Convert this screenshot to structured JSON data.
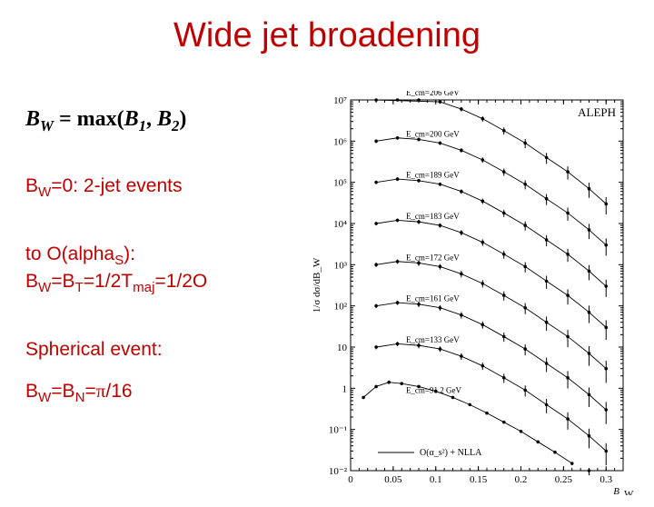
{
  "title": "Wide jet broadening",
  "formula_html": "B<sub>W</sub> = max(B<sub>1</sub>, B<sub>2</sub>)",
  "text": {
    "line1a": "B",
    "line1a_sub": "W",
    "line1b": "=0: 2-jet events",
    "line2a": "to O(alpha",
    "line2a_sub": "S",
    "line2b": "):",
    "line3a": "B",
    "line3a_sub1": "W",
    "line3b": "=B",
    "line3b_sub": "T",
    "line3c": "=1/2T",
    "line3c_sub": "maj",
    "line3d": "=1/2O",
    "line4": "Spherical event:",
    "line5a": "B",
    "line5a_sub1": "W",
    "line5b": "=B",
    "line5b_sub": "N",
    "line5c": "=",
    "line5_pi": "π",
    "line5d": "/16"
  },
  "chart": {
    "type": "scatter-log",
    "aleph_label": "ALEPH",
    "xlabel": "B_W",
    "ylabel": "1/σ dσ/dB_W",
    "xlim": [
      0,
      0.32
    ],
    "xticks": [
      0,
      0.05,
      0.1,
      0.15,
      0.2,
      0.25,
      0.3
    ],
    "xticklabels": [
      "0",
      "0.05",
      "0.1",
      "0.15",
      "0.2",
      "0.25",
      "0.3"
    ],
    "ylim_exp": [
      -2,
      7
    ],
    "yticks_exp": [
      -2,
      -1,
      0,
      1,
      2,
      3,
      4,
      5,
      6,
      7
    ],
    "yticklabels": [
      "10⁻²",
      "10⁻¹",
      "1",
      "10",
      "10²",
      "10³",
      "10⁴",
      "10⁵",
      "10⁶",
      "10⁷"
    ],
    "legend": "O(α_s²) + NLLA",
    "series": [
      {
        "label": "E_cm=206 GeV",
        "offset_exp": 6,
        "xs": [
          0.03,
          0.055,
          0.08,
          0.105,
          0.13,
          0.155,
          0.18,
          0.205,
          0.23,
          0.255,
          0.28,
          0.3
        ],
        "ys": [
          10,
          12,
          11,
          9,
          6,
          3.5,
          1.8,
          0.9,
          0.4,
          0.18,
          0.07,
          0.03
        ],
        "err": [
          0.1,
          0.1,
          0.1,
          0.1,
          0.12,
          0.15,
          0.2,
          0.25,
          0.3,
          0.35,
          0.4,
          0.45
        ]
      },
      {
        "label": "E_cm=200 GeV",
        "offset_exp": 5,
        "xs": [
          0.03,
          0.055,
          0.08,
          0.105,
          0.13,
          0.155,
          0.18,
          0.205,
          0.23,
          0.255,
          0.28,
          0.3
        ],
        "ys": [
          10,
          12,
          11,
          9,
          6,
          3.5,
          1.8,
          0.9,
          0.4,
          0.18,
          0.07,
          0.03
        ],
        "err": [
          0.1,
          0.1,
          0.1,
          0.1,
          0.12,
          0.15,
          0.2,
          0.25,
          0.3,
          0.35,
          0.4,
          0.45
        ]
      },
      {
        "label": "E_cm=189 GeV",
        "offset_exp": 4,
        "xs": [
          0.03,
          0.055,
          0.08,
          0.105,
          0.13,
          0.155,
          0.18,
          0.205,
          0.23,
          0.255,
          0.28,
          0.3
        ],
        "ys": [
          10,
          12,
          11,
          9,
          6,
          3.5,
          1.8,
          0.9,
          0.4,
          0.18,
          0.07,
          0.03
        ],
        "err": [
          0.1,
          0.1,
          0.1,
          0.1,
          0.12,
          0.15,
          0.2,
          0.25,
          0.3,
          0.35,
          0.4,
          0.45
        ]
      },
      {
        "label": "E_cm=183 GeV",
        "offset_exp": 3,
        "xs": [
          0.03,
          0.055,
          0.08,
          0.105,
          0.13,
          0.155,
          0.18,
          0.205,
          0.23,
          0.255,
          0.28,
          0.3
        ],
        "ys": [
          10,
          12,
          11,
          9,
          6,
          3.5,
          1.8,
          0.9,
          0.4,
          0.18,
          0.07,
          0.03
        ],
        "err": [
          0.1,
          0.1,
          0.12,
          0.12,
          0.15,
          0.18,
          0.22,
          0.28,
          0.35,
          0.4,
          0.45,
          0.5
        ]
      },
      {
        "label": "E_cm=172 GeV",
        "offset_exp": 2,
        "xs": [
          0.03,
          0.055,
          0.08,
          0.105,
          0.13,
          0.155,
          0.18,
          0.205,
          0.23,
          0.255,
          0.28,
          0.3
        ],
        "ys": [
          10,
          12,
          11,
          9,
          6,
          3.5,
          1.8,
          0.9,
          0.4,
          0.18,
          0.07,
          0.03
        ],
        "err": [
          0.12,
          0.12,
          0.15,
          0.15,
          0.18,
          0.2,
          0.25,
          0.3,
          0.38,
          0.45,
          0.5,
          0.55
        ]
      },
      {
        "label": "E_cm=161 GeV",
        "offset_exp": 1,
        "xs": [
          0.03,
          0.055,
          0.08,
          0.105,
          0.13,
          0.155,
          0.18,
          0.205,
          0.23,
          0.255,
          0.28,
          0.3
        ],
        "ys": [
          10,
          12,
          11,
          9,
          6,
          3.5,
          1.8,
          0.9,
          0.4,
          0.18,
          0.07,
          0.03
        ],
        "err": [
          0.12,
          0.12,
          0.15,
          0.15,
          0.18,
          0.2,
          0.25,
          0.3,
          0.38,
          0.45,
          0.5,
          0.55
        ]
      },
      {
        "label": "E_cm=133 GeV",
        "offset_exp": 0,
        "xs": [
          0.03,
          0.055,
          0.08,
          0.105,
          0.13,
          0.155,
          0.18,
          0.205,
          0.23,
          0.255,
          0.28,
          0.3
        ],
        "ys": [
          10,
          12,
          11,
          9,
          6,
          3.5,
          1.8,
          0.9,
          0.4,
          0.18,
          0.07,
          0.03
        ],
        "err": [
          0.12,
          0.12,
          0.15,
          0.15,
          0.18,
          0.2,
          0.25,
          0.3,
          0.38,
          0.45,
          0.5,
          0.55
        ]
      },
      {
        "label": "E_cm=91.2 GeV",
        "offset_exp": -1,
        "xs": [
          0.015,
          0.03,
          0.045,
          0.06,
          0.08,
          0.1,
          0.12,
          0.14,
          0.16,
          0.18,
          0.2,
          0.22,
          0.24,
          0.26,
          0.28,
          0.3
        ],
        "ys": [
          6,
          11,
          14,
          13,
          11,
          8.5,
          6,
          4,
          2.5,
          1.5,
          0.9,
          0.5,
          0.28,
          0.15,
          0.07,
          0.03
        ],
        "err": [
          0.02,
          0.02,
          0.02,
          0.02,
          0.02,
          0.02,
          0.02,
          0.02,
          0.03,
          0.03,
          0.04,
          0.05,
          0.06,
          0.08,
          0.1,
          0.12
        ]
      }
    ],
    "colors": {
      "axis": "#000000",
      "points": "#000000",
      "bg": "#ffffff"
    },
    "font_sizes": {
      "tick": 11,
      "series_label": 9,
      "aleph": 13
    }
  }
}
